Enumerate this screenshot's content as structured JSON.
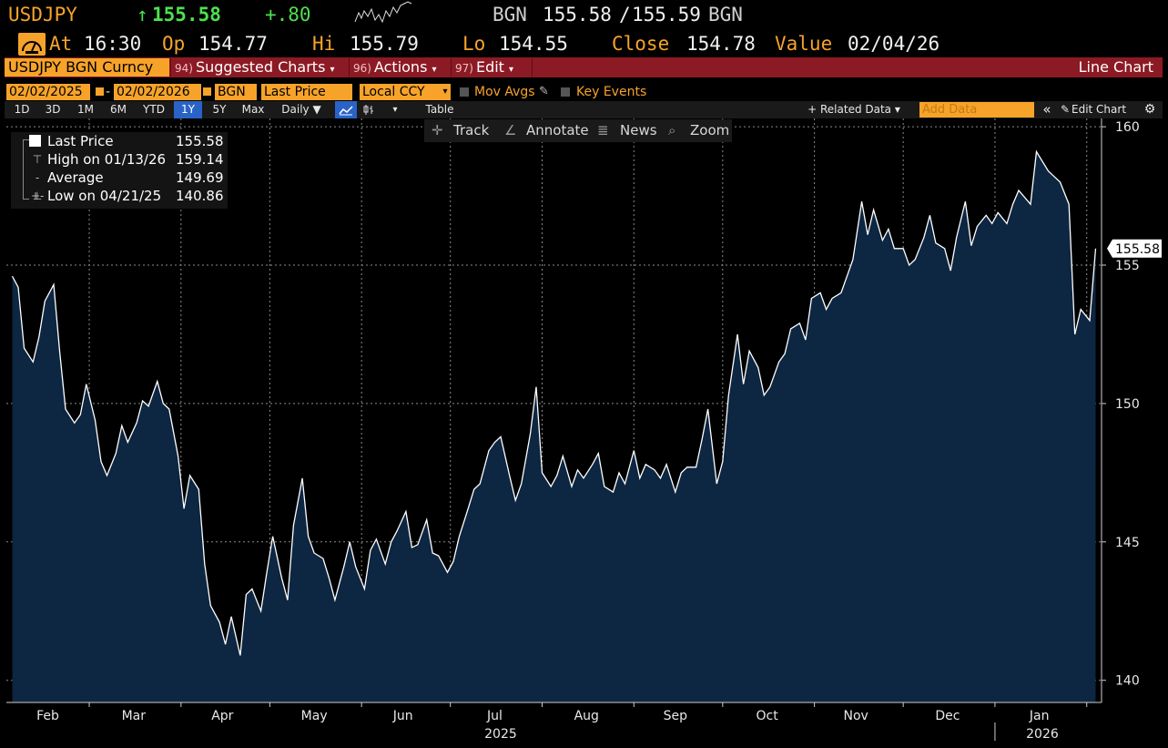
{
  "header": {
    "ticker": "USDJPY",
    "arrow": "↑",
    "last": "155.58",
    "change": "+.80",
    "bid_source_left": "BGN",
    "bid": "155.58",
    "slash": "/",
    "ask": "155.59",
    "bid_source_right": "BGN",
    "at_label": "At",
    "at_time": "16:30",
    "op_label": "Op",
    "op": "154.77",
    "hi_label": "Hi",
    "hi": "155.79",
    "lo_label": "Lo",
    "lo": "154.55",
    "close_label": "Close",
    "close": "154.78",
    "value_label": "Value",
    "value_date": "02/04/26"
  },
  "redbar": {
    "security": "USDJPY BGN Curncy",
    "suggested_num": "94)",
    "suggested": "Suggested Charts",
    "actions_num": "96)",
    "actions": "Actions",
    "edit_num": "97)",
    "edit": "Edit",
    "chart_type": "Line Chart"
  },
  "controls": {
    "start_date": "02/02/2025",
    "dash": "-",
    "end_date": "02/02/2026",
    "source": "BGN",
    "field": "Last Price",
    "currency": "Local CCY",
    "mov_avgs": "Mov Avgs",
    "key_events": "Key Events"
  },
  "toolbar": {
    "ranges": [
      "1D",
      "3D",
      "1M",
      "6M",
      "YTD",
      "1Y",
      "5Y",
      "Max"
    ],
    "selected_range": "1Y",
    "frequency": "Daily ▼",
    "table": "Table",
    "related": "+ Related Data ▾",
    "add_data_placeholder": "Add Data",
    "collapse": "«",
    "edit_chart": "Edit Chart"
  },
  "subtools": {
    "track": "Track",
    "annotate": "Annotate",
    "news": "News",
    "zoom": "Zoom"
  },
  "legend": {
    "last_label": "Last Price",
    "last_value": "155.58",
    "high_label": "High on 01/13/26",
    "high_value": "159.14",
    "avg_label": "Average",
    "avg_value": "149.69",
    "low_label": "Low on 04/21/25",
    "low_value": "140.86"
  },
  "colors": {
    "amber": "#f7a32a",
    "red_bar": "#8c1a24",
    "area_fill": "#0d2642",
    "line": "#ffffff",
    "up_green": "#4ee04e"
  },
  "chart_data": {
    "type": "area",
    "title": "",
    "xlabel": "",
    "ylabel": "",
    "ylim": [
      139.2,
      160.3
    ],
    "y_ticks": [
      140,
      145,
      150,
      155,
      160
    ],
    "x_month_labels": [
      "Feb",
      "Mar",
      "Apr",
      "May",
      "Jun",
      "Jul",
      "Aug",
      "Sep",
      "Oct",
      "Nov",
      "Dec",
      "Jan"
    ],
    "x_year_labels": [
      "2025",
      "2026"
    ],
    "last_value_label": "155.58",
    "grid": true,
    "series": [
      {
        "x": [
          "2025-02-03",
          "2025-02-05",
          "2025-02-07",
          "2025-02-10",
          "2025-02-12",
          "2025-02-14",
          "2025-02-17",
          "2025-02-19",
          "2025-02-21",
          "2025-02-24",
          "2025-02-26",
          "2025-02-28",
          "2025-03-03",
          "2025-03-05",
          "2025-03-07",
          "2025-03-10",
          "2025-03-12",
          "2025-03-14",
          "2025-03-17",
          "2025-03-19",
          "2025-03-21",
          "2025-03-24",
          "2025-03-26",
          "2025-03-28",
          "2025-03-31",
          "2025-04-02",
          "2025-04-04",
          "2025-04-07",
          "2025-04-09",
          "2025-04-11",
          "2025-04-14",
          "2025-04-16",
          "2025-04-18",
          "2025-04-21",
          "2025-04-23",
          "2025-04-25",
          "2025-04-28",
          "2025-04-30",
          "2025-05-02",
          "2025-05-05",
          "2025-05-07",
          "2025-05-09",
          "2025-05-12",
          "2025-05-14",
          "2025-05-16",
          "2025-05-19",
          "2025-05-21",
          "2025-05-23",
          "2025-05-26",
          "2025-05-28",
          "2025-05-30",
          "2025-06-02",
          "2025-06-04",
          "2025-06-06",
          "2025-06-09",
          "2025-06-11",
          "2025-06-13",
          "2025-06-16",
          "2025-06-18",
          "2025-06-20",
          "2025-06-23",
          "2025-06-25",
          "2025-06-27",
          "2025-06-30",
          "2025-07-02",
          "2025-07-04",
          "2025-07-07",
          "2025-07-09",
          "2025-07-11",
          "2025-07-14",
          "2025-07-16",
          "2025-07-18",
          "2025-07-21",
          "2025-07-23",
          "2025-07-25",
          "2025-07-28",
          "2025-07-30",
          "2025-08-01",
          "2025-08-04",
          "2025-08-06",
          "2025-08-08",
          "2025-08-11",
          "2025-08-13",
          "2025-08-15",
          "2025-08-18",
          "2025-08-20",
          "2025-08-22",
          "2025-08-25",
          "2025-08-27",
          "2025-08-29",
          "2025-09-01",
          "2025-09-03",
          "2025-09-05",
          "2025-09-08",
          "2025-09-10",
          "2025-09-12",
          "2025-09-15",
          "2025-09-17",
          "2025-09-19",
          "2025-09-22",
          "2025-09-24",
          "2025-09-26",
          "2025-09-29",
          "2025-10-01",
          "2025-10-03",
          "2025-10-06",
          "2025-10-08",
          "2025-10-10",
          "2025-10-13",
          "2025-10-15",
          "2025-10-17",
          "2025-10-20",
          "2025-10-22",
          "2025-10-24",
          "2025-10-27",
          "2025-10-29",
          "2025-10-31",
          "2025-11-03",
          "2025-11-05",
          "2025-11-07",
          "2025-11-10",
          "2025-11-12",
          "2025-11-14",
          "2025-11-17",
          "2025-11-19",
          "2025-11-21",
          "2025-11-24",
          "2025-11-26",
          "2025-11-28",
          "2025-12-01",
          "2025-12-03",
          "2025-12-05",
          "2025-12-08",
          "2025-12-10",
          "2025-12-12",
          "2025-12-15",
          "2025-12-17",
          "2025-12-19",
          "2025-12-22",
          "2025-12-24",
          "2025-12-26",
          "2025-12-29",
          "2025-12-31",
          "2026-01-02",
          "2026-01-05",
          "2026-01-07",
          "2026-01-09",
          "2026-01-13",
          "2026-01-15",
          "2026-01-19",
          "2026-01-21",
          "2026-01-23",
          "2026-01-26",
          "2026-01-28",
          "2026-01-30",
          "2026-02-02",
          "2026-02-04"
        ],
        "values": [
          154.6,
          154.2,
          152.0,
          151.5,
          152.4,
          153.7,
          154.3,
          151.9,
          149.8,
          149.3,
          149.6,
          150.7,
          149.4,
          147.9,
          147.4,
          148.2,
          149.2,
          148.6,
          149.3,
          150.1,
          149.9,
          150.8,
          150.0,
          149.8,
          148.1,
          146.2,
          147.4,
          146.9,
          144.2,
          142.7,
          142.1,
          141.3,
          142.3,
          140.9,
          143.1,
          143.3,
          142.5,
          143.9,
          145.2,
          143.7,
          142.9,
          145.6,
          147.3,
          145.2,
          144.6,
          144.4,
          143.7,
          142.9,
          144.1,
          145.0,
          144.1,
          143.3,
          144.7,
          145.1,
          144.2,
          145.0,
          145.4,
          146.1,
          144.8,
          144.9,
          145.8,
          144.6,
          144.5,
          143.9,
          144.3,
          145.2,
          146.2,
          146.9,
          147.1,
          148.3,
          148.6,
          148.8,
          147.4,
          146.5,
          147.1,
          148.9,
          150.6,
          147.5,
          147.0,
          147.4,
          148.1,
          147.0,
          147.6,
          147.3,
          147.8,
          148.2,
          147.0,
          146.8,
          147.5,
          147.1,
          148.3,
          147.3,
          147.8,
          147.6,
          147.3,
          147.8,
          146.8,
          147.5,
          147.7,
          147.7,
          148.7,
          149.8,
          147.1,
          147.9,
          150.3,
          152.5,
          150.7,
          151.9,
          151.3,
          150.3,
          150.6,
          151.5,
          151.8,
          152.7,
          152.9,
          152.3,
          153.8,
          154.0,
          153.4,
          153.8,
          154.0,
          154.6,
          155.2,
          157.3,
          156.1,
          157.0,
          155.9,
          156.3,
          155.6,
          155.6,
          155.0,
          155.2,
          156.0,
          156.8,
          155.8,
          155.6,
          154.8,
          156.0,
          157.3,
          155.7,
          156.4,
          156.8,
          156.5,
          156.9,
          156.5,
          157.2,
          157.7,
          157.2,
          159.1,
          158.4,
          158.2,
          158.0,
          157.2,
          152.5,
          153.4,
          153.0,
          155.6
        ]
      }
    ]
  }
}
